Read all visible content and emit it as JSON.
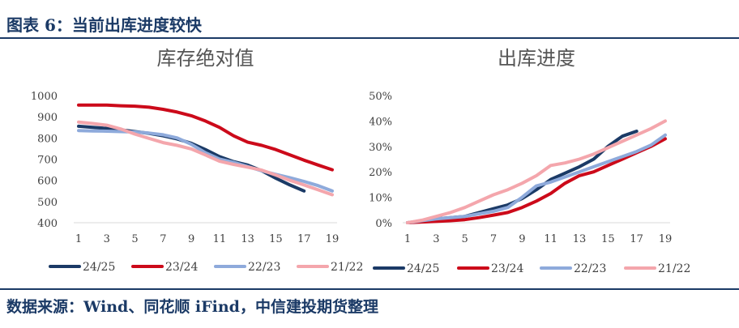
{
  "header": {
    "title": "图表 6：当前出库进度较快"
  },
  "footer": {
    "source": "数据来源：Wind、同花顺 iFind，中信建投期货整理"
  },
  "chart_data": [
    {
      "type": "line",
      "title": "库存绝对值",
      "x": [
        1,
        2,
        3,
        4,
        5,
        6,
        7,
        8,
        9,
        10,
        11,
        12,
        13,
        14,
        15,
        16,
        17,
        18,
        19
      ],
      "x_ticks": [
        1,
        3,
        5,
        7,
        9,
        11,
        13,
        15,
        17,
        19
      ],
      "ylim": [
        400,
        1000
      ],
      "y_ticks": [
        400,
        500,
        600,
        700,
        800,
        900,
        1000
      ],
      "grid": false,
      "legend": "bottom",
      "series": [
        {
          "name": "24/25",
          "color": "#1b3a66",
          "values": [
            855,
            850,
            845,
            838,
            830,
            822,
            810,
            795,
            775,
            745,
            712,
            688,
            672,
            645,
            610,
            578,
            550,
            null,
            null
          ]
        },
        {
          "name": "23/24",
          "color": "#cc0a1a",
          "values": [
            955,
            955,
            955,
            952,
            950,
            945,
            935,
            922,
            905,
            880,
            850,
            810,
            780,
            765,
            745,
            720,
            695,
            672,
            650
          ]
        },
        {
          "name": "22/23",
          "color": "#8eaadb",
          "values": [
            835,
            833,
            832,
            830,
            828,
            823,
            815,
            800,
            770,
            730,
            700,
            685,
            665,
            645,
            628,
            612,
            595,
            575,
            550
          ]
        },
        {
          "name": "21/22",
          "color": "#f4a6ac",
          "values": [
            875,
            868,
            860,
            842,
            818,
            798,
            778,
            765,
            748,
            720,
            690,
            675,
            662,
            648,
            625,
            600,
            578,
            555,
            532
          ]
        }
      ]
    },
    {
      "type": "line",
      "title": "出库进度",
      "x": [
        1,
        2,
        3,
        4,
        5,
        6,
        7,
        8,
        9,
        10,
        11,
        12,
        13,
        14,
        15,
        16,
        17,
        18,
        19
      ],
      "x_ticks": [
        1,
        3,
        5,
        7,
        9,
        11,
        13,
        15,
        17,
        19
      ],
      "ylim": [
        0,
        50
      ],
      "y_ticks": [
        0,
        10,
        20,
        30,
        40,
        50
      ],
      "y_tick_labels": [
        "0%",
        "10%",
        "20%",
        "30%",
        "40%",
        "50%"
      ],
      "grid": false,
      "legend": "bottom",
      "series": [
        {
          "name": "24/25",
          "color": "#1b3a66",
          "values": [
            0,
            0.5,
            1.5,
            2,
            2.5,
            4,
            5.5,
            7,
            9.5,
            13,
            17,
            19.5,
            22,
            25,
            30,
            34,
            36,
            null,
            null
          ]
        },
        {
          "name": "23/24",
          "color": "#cc0a1a",
          "values": [
            0,
            0.3,
            0.5,
            0.8,
            1.2,
            2,
            3,
            4,
            6,
            8.5,
            11.5,
            15.5,
            18.5,
            20,
            22.5,
            25,
            27.5,
            30,
            33
          ]
        },
        {
          "name": "22/23",
          "color": "#8eaadb",
          "values": [
            0,
            0.8,
            1.5,
            2,
            2.5,
            3.5,
            4.5,
            6,
            10,
            14.5,
            16,
            18,
            20,
            22,
            24,
            26,
            28,
            30.5,
            34.5
          ]
        },
        {
          "name": "21/22",
          "color": "#f4a6ac",
          "values": [
            0,
            1,
            2.5,
            4,
            6,
            8.5,
            11,
            13,
            15.5,
            18.5,
            22.5,
            23.5,
            25,
            27,
            29.5,
            32,
            34.5,
            37,
            40
          ]
        }
      ]
    }
  ]
}
